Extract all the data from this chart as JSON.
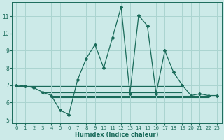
{
  "xlabel": "Humidex (Indice chaleur)",
  "bg_color": "#cceae8",
  "grid_color": "#aad4d0",
  "line_color": "#1a6b5a",
  "xlim": [
    -0.5,
    23.5
  ],
  "ylim": [
    4.8,
    11.8
  ],
  "yticks": [
    5,
    6,
    7,
    8,
    9,
    10,
    11
  ],
  "xticks": [
    0,
    1,
    2,
    3,
    4,
    5,
    6,
    7,
    8,
    9,
    10,
    11,
    12,
    13,
    14,
    15,
    16,
    17,
    18,
    19,
    20,
    21,
    22,
    23
  ],
  "series_main": [
    [
      0,
      7.0
    ],
    [
      1,
      6.95
    ],
    [
      2,
      6.85
    ],
    [
      3,
      6.6
    ],
    [
      4,
      6.4
    ],
    [
      5,
      5.55
    ],
    [
      6,
      5.3
    ],
    [
      7,
      7.3
    ],
    [
      8,
      8.55
    ],
    [
      9,
      9.35
    ],
    [
      10,
      8.0
    ],
    [
      11,
      9.75
    ],
    [
      12,
      11.55
    ],
    [
      13,
      6.5
    ],
    [
      14,
      11.05
    ],
    [
      15,
      10.45
    ],
    [
      16,
      6.5
    ],
    [
      17,
      9.0
    ],
    [
      18,
      7.75
    ],
    [
      19,
      7.0
    ],
    [
      20,
      6.4
    ],
    [
      21,
      6.5
    ],
    [
      22,
      6.4
    ],
    [
      23,
      6.4
    ]
  ],
  "series_flat": [
    {
      "x_start": 0,
      "x_end": 19,
      "y": 6.95
    },
    {
      "x_start": 3,
      "x_end": 19,
      "y": 6.6
    },
    {
      "x_start": 3,
      "x_end": 19,
      "y": 6.5
    },
    {
      "x_start": 4,
      "x_end": 22,
      "y": 6.4
    },
    {
      "x_start": 4,
      "x_end": 22,
      "y": 6.3
    }
  ]
}
